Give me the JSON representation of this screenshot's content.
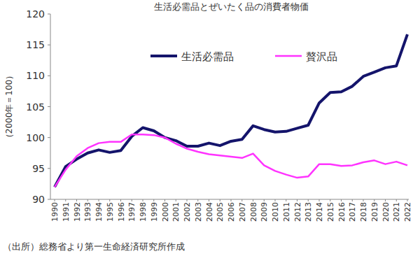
{
  "chart_data": {
    "type": "line",
    "title": "生活必需品とぜいたく品の消費者物価",
    "y_label": "（2000年＝100）",
    "source": "（出所）総務省より第一生命経済研究所作成",
    "categories": [
      "1990",
      "1991",
      "1992",
      "1993",
      "1994",
      "1995",
      "1996",
      "1997",
      "1998",
      "1999",
      "2000",
      "2001",
      "2002",
      "2003",
      "2004",
      "2005",
      "2006",
      "2007",
      "2008",
      "2009",
      "2010",
      "2011",
      "2012",
      "2013",
      "2014",
      "2015",
      "2016",
      "2017",
      "2018",
      "2019",
      "2020",
      "2021",
      "2022"
    ],
    "series": [
      {
        "name": "生活必需品",
        "color": "#14146b",
        "values": [
          92.0,
          95.3,
          96.5,
          97.5,
          98.0,
          97.6,
          97.9,
          100.2,
          101.6,
          101.1,
          100.0,
          99.5,
          98.6,
          98.6,
          99.1,
          98.7,
          99.4,
          99.7,
          101.9,
          101.3,
          100.9,
          101.0,
          101.5,
          102.0,
          105.6,
          107.3,
          107.4,
          108.3,
          109.9,
          110.6,
          111.3,
          111.6,
          116.7
        ]
      },
      {
        "name": "贅沢品",
        "color": "#ff33ff",
        "values": [
          92.0,
          94.8,
          97.0,
          98.3,
          99.1,
          99.3,
          99.3,
          100.5,
          100.5,
          100.4,
          100.0,
          99.0,
          98.2,
          97.7,
          97.3,
          97.1,
          96.9,
          96.7,
          97.4,
          95.5,
          94.6,
          94.0,
          93.5,
          93.7,
          95.7,
          95.7,
          95.4,
          95.5,
          96.0,
          96.3,
          95.7,
          96.1,
          95.5
        ]
      }
    ],
    "ylim": [
      90,
      120
    ],
    "yticks": [
      90,
      95,
      100,
      105,
      110,
      115,
      120
    ],
    "grid": false,
    "legend": "top"
  }
}
